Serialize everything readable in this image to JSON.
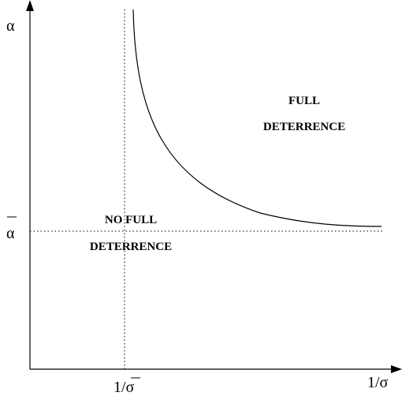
{
  "axes": {
    "y_label": "α",
    "x_label": "1/σ",
    "y_mark_label": "α",
    "x_mark_label": "1/σ"
  },
  "regions": {
    "full_line1": "FULL",
    "full_line2": "DETERRENCE",
    "nofull_line1": "NO FULL",
    "nofull_line2": "DETERRENCE"
  }
}
